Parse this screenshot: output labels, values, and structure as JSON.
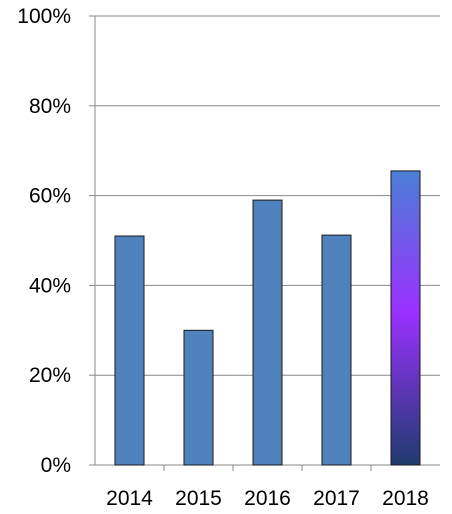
{
  "chart_data": {
    "type": "bar",
    "title": "",
    "xlabel": "",
    "ylabel": "",
    "categories": [
      "2014",
      "2015",
      "2016",
      "2017",
      "2018"
    ],
    "values": [
      0.51,
      0.3,
      0.59,
      0.512,
      0.655
    ],
    "ylim": [
      0,
      1
    ],
    "y_ticks": [
      {
        "value": 0,
        "label": "0%"
      },
      {
        "value": 0.2,
        "label": "20%"
      },
      {
        "value": 0.4,
        "label": "40%"
      },
      {
        "value": 0.6,
        "label": "60%"
      },
      {
        "value": 0.8,
        "label": "80%"
      },
      {
        "value": 1.0,
        "label": "100%"
      }
    ],
    "grid": true,
    "legend": "none",
    "bar_color": "#4f81bd",
    "highlight": {
      "category": "2018",
      "gradient_colors": [
        "#4a7fd6",
        "#9b30ff",
        "#1f3b6e"
      ]
    }
  }
}
